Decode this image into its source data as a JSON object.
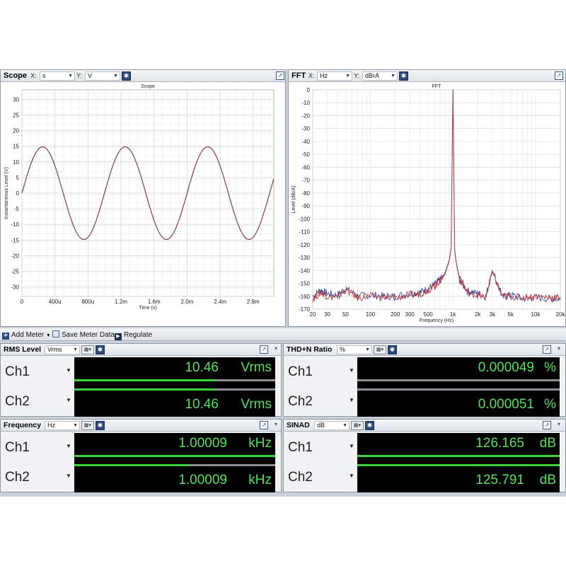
{
  "scope": {
    "title": "Scope",
    "x_label": "X:",
    "x_unit": "s",
    "y_label": "Y:",
    "y_unit": "V",
    "chart_title": "Scope",
    "xlabel": "Time (s)",
    "ylabel": "Instantaneous Level (V)"
  },
  "fft": {
    "title": "FFT",
    "x_label": "X:",
    "x_unit": "Hz",
    "y_label": "Y:",
    "y_unit": "dBrA",
    "chart_title": "FFT",
    "xlabel": "Frequency (Hz)",
    "ylabel": "Level (dBrA)"
  },
  "chart_data": [
    {
      "type": "line",
      "title": "Scope",
      "xlabel": "Time (s)",
      "ylabel": "Instantaneous Level (V)",
      "xlim": [
        0,
        0.00305
      ],
      "ylim": [
        -33,
        33
      ],
      "x_ticks": [
        0,
        0.0004,
        0.0008,
        0.0012,
        0.0016,
        0.002,
        0.0024,
        0.0028
      ],
      "x_tick_labels": [
        "0",
        "400u",
        "800u",
        "1.2m",
        "1.6m",
        "2.0m",
        "2.4m",
        "2.8m"
      ],
      "y_ticks": [
        30,
        25,
        20,
        15,
        10,
        5,
        0,
        -5,
        -10,
        -15,
        -20,
        -25,
        -30
      ],
      "y_tick_labels": [
        "30",
        "25",
        "20",
        "15",
        "10",
        "5",
        "0",
        "-5",
        "-10",
        "-15",
        "-20",
        "-25",
        "-30"
      ],
      "grid": true,
      "series": [
        {
          "color": "#8b3a4a",
          "amplitude": 14.8,
          "frequency_hz": 1000.09,
          "phase": 0
        }
      ]
    },
    {
      "type": "line",
      "title": "FFT",
      "xlabel": "Frequency (Hz)",
      "ylabel": "Level (dBrA)",
      "x_scale": "log",
      "xlim": [
        20,
        20000
      ],
      "ylim": [
        -170,
        0
      ],
      "x_ticks": [
        20,
        30,
        50,
        100,
        200,
        300,
        500,
        1000,
        2000,
        3000,
        5000,
        10000,
        20000
      ],
      "x_tick_labels": [
        "20",
        "30",
        "50",
        "100",
        "200",
        "300",
        "500",
        "1k",
        "2k",
        "3k",
        "5k",
        "10k",
        "20k"
      ],
      "y_ticks": [
        0,
        -10,
        -20,
        -30,
        -40,
        -50,
        -60,
        -70,
        -80,
        -90,
        -100,
        -110,
        -120,
        -130,
        -140,
        -150,
        -160,
        -170
      ],
      "y_tick_labels": [
        "0",
        "-10",
        "-20",
        "-30",
        "-40",
        "-50",
        "-60",
        "-70",
        "-80",
        "-90",
        "-100",
        "-110",
        "-120",
        "-130",
        "-140",
        "-150",
        "-160",
        "-170"
      ],
      "grid": true,
      "series": [
        {
          "color": "#3a4fa8",
          "x": [
            20,
            25,
            30,
            40,
            50,
            70,
            100,
            150,
            200,
            300,
            400,
            500,
            600,
            700,
            800,
            900,
            950,
            1000,
            1050,
            1100,
            1200,
            1500,
            2000,
            2500,
            3000,
            4000,
            5000,
            7000,
            10000,
            15000,
            20000
          ],
          "y": [
            -160,
            -155,
            -158,
            -159,
            -154,
            -160,
            -159,
            -160,
            -160,
            -158,
            -157,
            -154,
            -151,
            -147,
            -142,
            -132,
            -122,
            0,
            -124,
            -134,
            -146,
            -156,
            -158,
            -160,
            -140,
            -161,
            -159,
            -162,
            -161,
            -162,
            -162
          ]
        },
        {
          "color": "#b83a3a",
          "x": [
            20,
            25,
            30,
            40,
            50,
            70,
            100,
            150,
            200,
            300,
            400,
            500,
            600,
            700,
            800,
            900,
            950,
            1000,
            1050,
            1100,
            1200,
            1500,
            2000,
            2500,
            3000,
            4000,
            5000,
            7000,
            10000,
            15000,
            20000
          ],
          "y": [
            -162,
            -157,
            -160,
            -161,
            -155,
            -161,
            -160,
            -161,
            -161,
            -159,
            -158,
            -155,
            -152,
            -148,
            -143,
            -133,
            -123,
            0,
            -125,
            -135,
            -147,
            -157,
            -159,
            -161,
            -141,
            -160,
            -160,
            -161,
            -160,
            -161,
            -161
          ]
        }
      ]
    }
  ],
  "toolbar": {
    "add_meter": "Add Meter",
    "save_meter_data": "Save Meter Data",
    "regulate": "Regulate"
  },
  "meters": {
    "rms": {
      "title": "RMS Level",
      "unit_select": "Vrms",
      "ch1_label": "Ch1",
      "ch1_value": "10.46",
      "ch1_unit": "Vrms",
      "ch1_level": 0.7,
      "ch1_peak": 0.73,
      "ch2_label": "Ch2",
      "ch2_value": "10.46",
      "ch2_unit": "Vrms",
      "ch2_level": 0.7,
      "ch2_peak": 0.73
    },
    "thdn": {
      "title": "THD+N Ratio",
      "unit_select": "%",
      "ch1_label": "Ch1",
      "ch1_value": "0.000049",
      "ch1_unit": "%",
      "ch1_level": 0.0,
      "ch2_label": "Ch2",
      "ch2_value": "0.000051",
      "ch2_unit": "%",
      "ch2_level": 0.0
    },
    "freq": {
      "title": "Frequency",
      "unit_select": "Hz",
      "ch1_label": "Ch1",
      "ch1_value": "1.00009",
      "ch1_unit": "kHz",
      "ch1_level": 1.0,
      "ch2_label": "Ch2",
      "ch2_value": "1.00009",
      "ch2_unit": "kHz",
      "ch2_level": 0.57
    },
    "sinad": {
      "title": "SINAD",
      "unit_select": "dB",
      "ch1_label": "Ch1",
      "ch1_value": "126.165",
      "ch1_unit": "dB",
      "ch1_level": 1.0,
      "ch2_label": "Ch2",
      "ch2_value": "125.791",
      "ch2_unit": "dB",
      "ch2_level": 1.0
    }
  }
}
